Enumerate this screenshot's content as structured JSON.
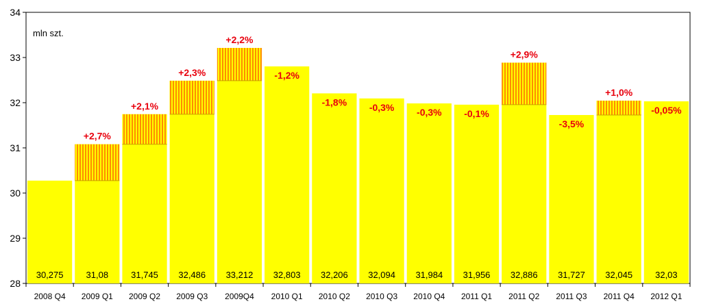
{
  "chart_data": {
    "type": "bar",
    "unit_label": "mln szt.",
    "categories": [
      "2008 Q4",
      "2009 Q1",
      "2009 Q2",
      "2009 Q3",
      "2009Q4",
      "2010 Q1",
      "2010 Q2",
      "2010 Q3",
      "2010 Q4",
      "2011 Q1",
      "2011 Q2",
      "2011 Q3",
      "2011 Q4",
      "2012 Q1"
    ],
    "values": [
      30.275,
      31.08,
      31.745,
      32.486,
      33.212,
      32.803,
      32.206,
      32.094,
      31.984,
      31.956,
      32.886,
      31.727,
      32.045,
      32.03
    ],
    "value_labels": [
      "30,275",
      "31,08",
      "31,745",
      "32,486",
      "33,212",
      "32,803",
      "32,206",
      "32,094",
      "31,984",
      "31,956",
      "32,886",
      "31,727",
      "32,045",
      "32,03"
    ],
    "change_labels": [
      "",
      "+2,7%",
      "+2,1%",
      "+2,3%",
      "+2,2%",
      "-1,2%",
      "-1,8%",
      "-0,3%",
      "-0,3%",
      "-0,1%",
      "+2,9%",
      "-3,5%",
      "+1,0%",
      "-0,05%"
    ],
    "ylim": [
      28,
      34
    ],
    "yticks": [
      28,
      29,
      30,
      31,
      32,
      33,
      34
    ],
    "grid": false,
    "colors": {
      "bar": "#ffff00",
      "increase_hatch_a": "#ff8c00",
      "increase_hatch_b": "#ffff00",
      "change_text": "#e8000d",
      "plot_background": "#ffffff",
      "axis": "#000000"
    }
  }
}
